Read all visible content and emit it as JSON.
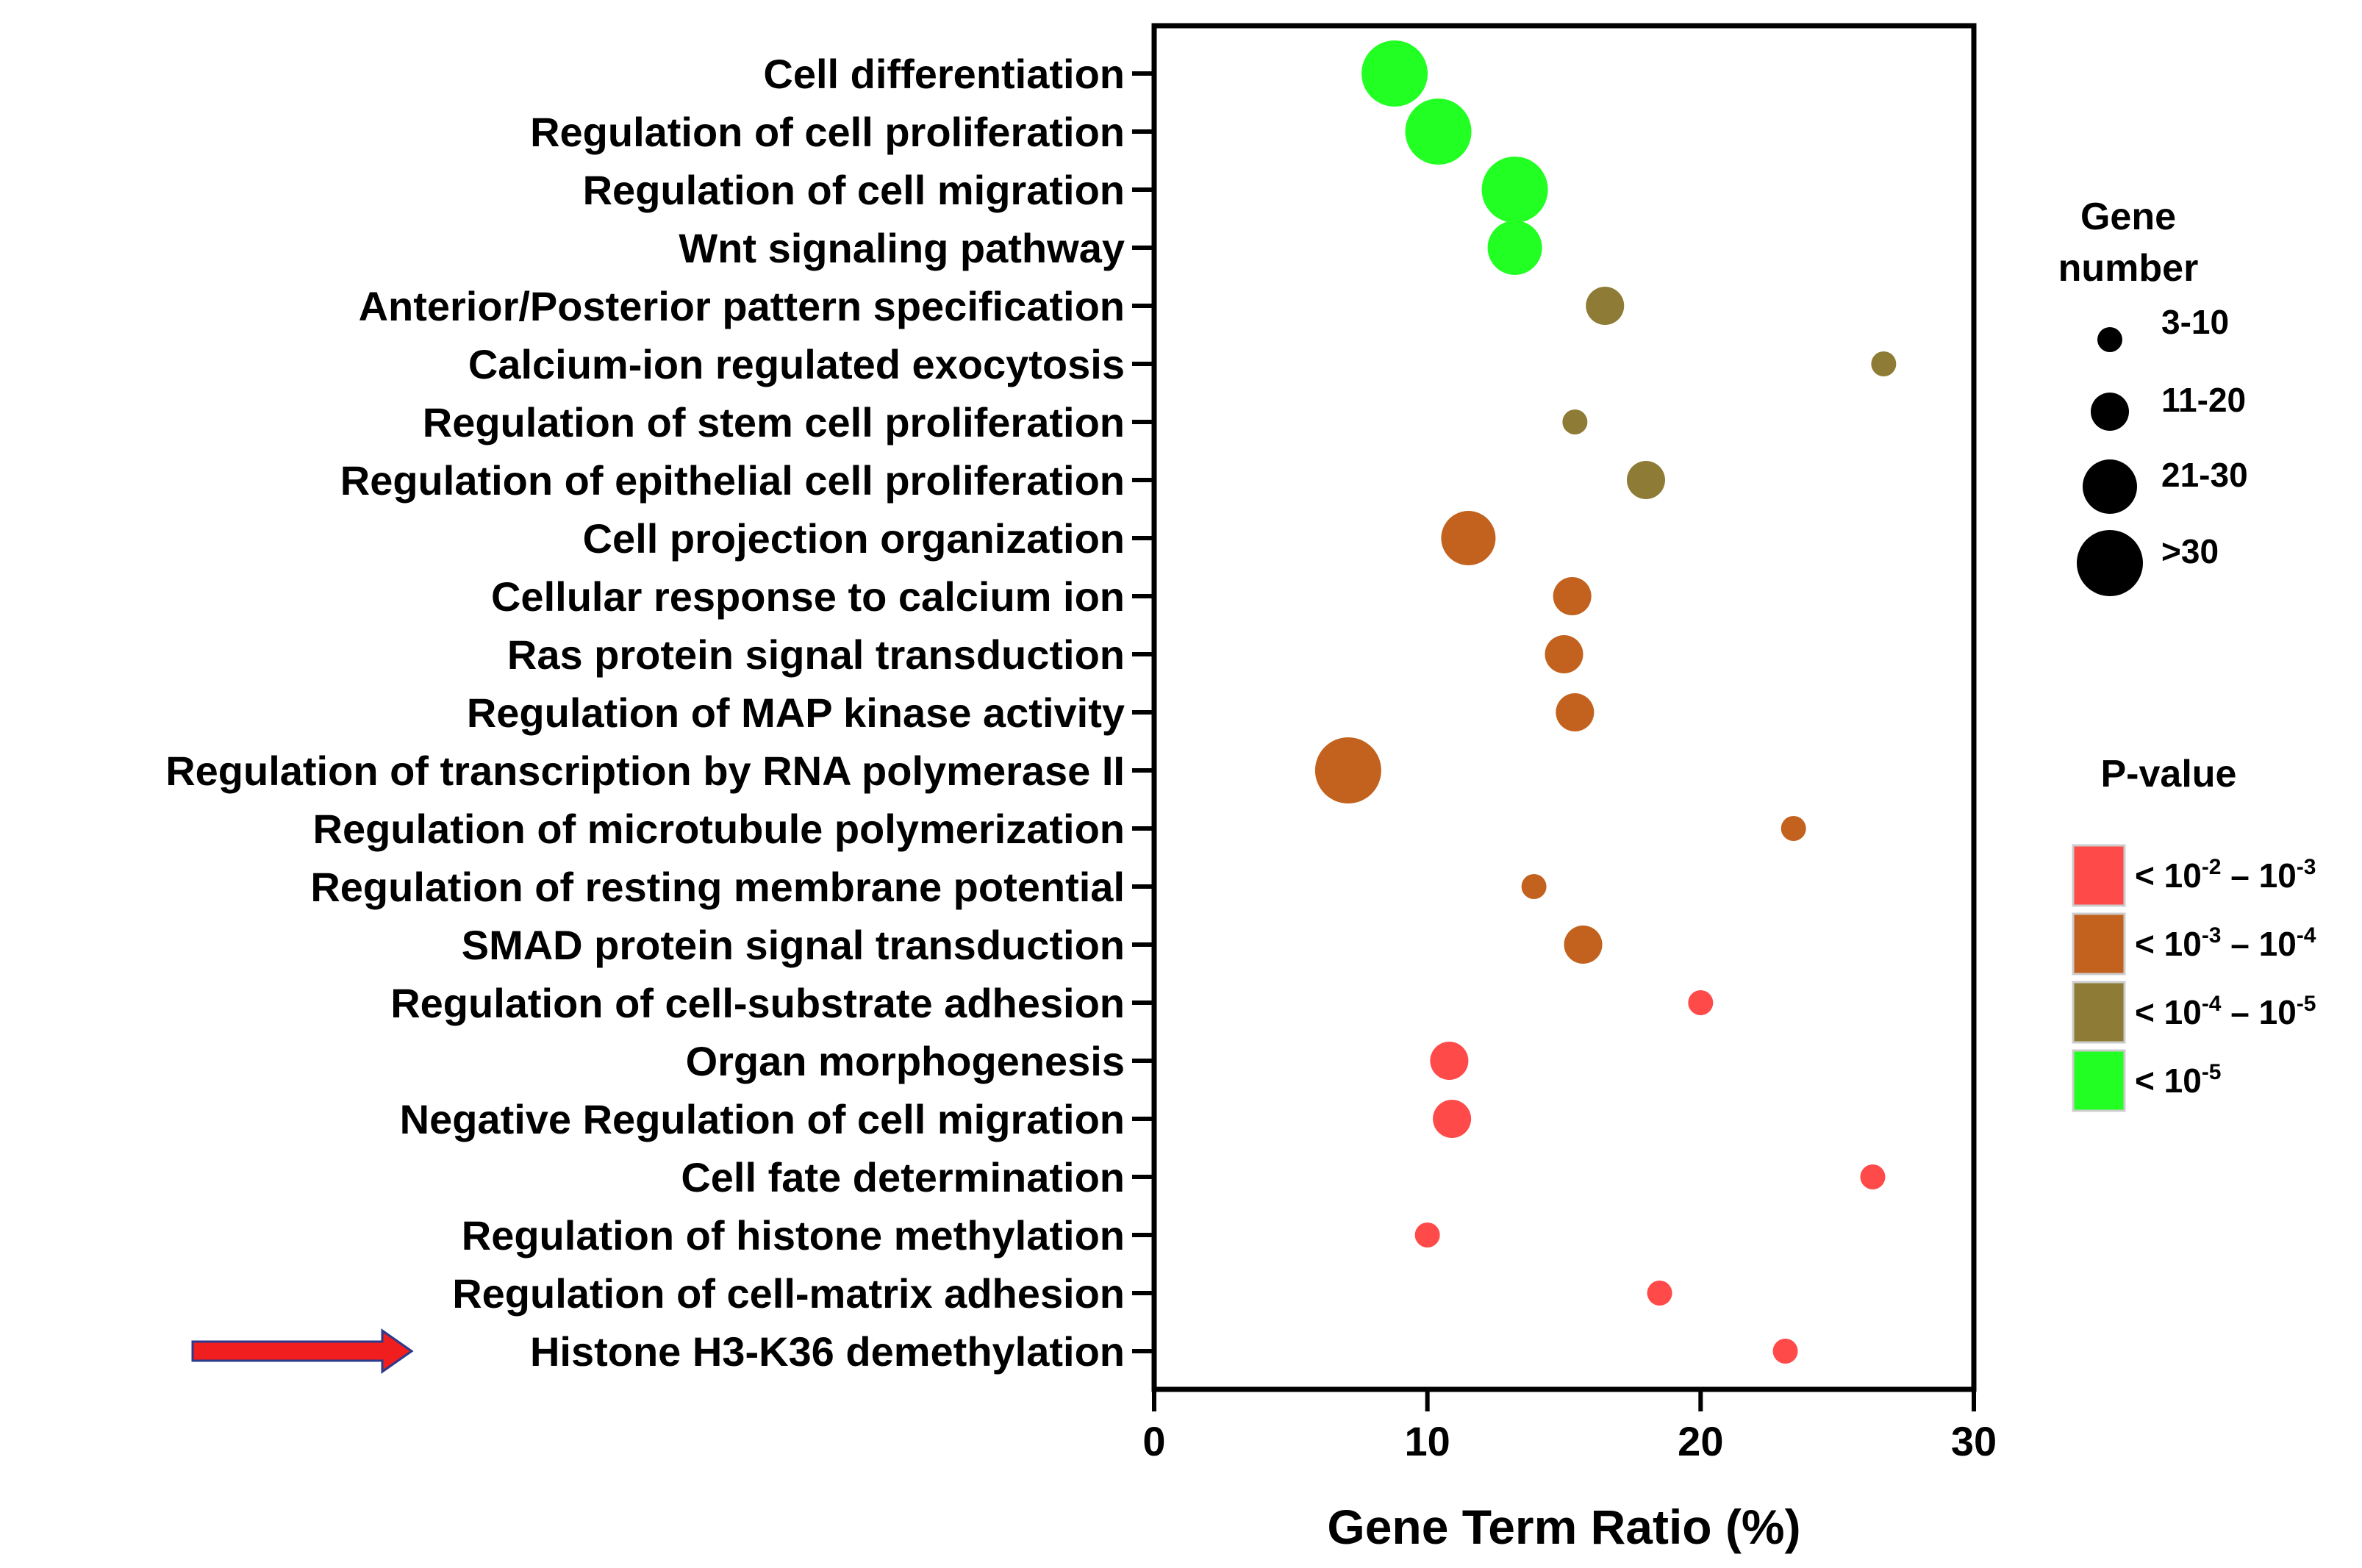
{
  "chart_data": {
    "type": "scatter",
    "subtype": "bubble",
    "xlabel": "Gene Term Ratio (%)",
    "ylabel": "",
    "xlim": [
      0,
      30
    ],
    "xticks": [
      "0",
      "10",
      "20",
      "30"
    ],
    "grid": false,
    "categories": [
      "Cell differentiation",
      "Regulation of cell proliferation",
      "Regulation of cell migration",
      "Wnt signaling pathway",
      "Anterior/Posterior pattern specification",
      "Calcium-ion regulated exocytosis",
      "Regulation of stem cell proliferation",
      "Regulation of epithelial cell proliferation",
      "Cell projection organization",
      "Cellular response to calcium ion",
      "Ras protein signal transduction",
      "Regulation of MAP kinase activity",
      "Regulation of transcription by RNA polymerase II",
      "Regulation of microtubule polymerization",
      "Regulation of resting membrane potential",
      "SMAD protein signal transduction",
      "Regulation of cell-substrate adhesion",
      "Organ morphogenesis",
      "Negative Regulation of cell migration",
      "Cell fate determination",
      "Regulation of histone methylation",
      "Regulation of cell-matrix adhesion",
      "Histone H3-K36 demethylation"
    ],
    "points": [
      {
        "term": "Cell differentiation",
        "ratio": 8.8,
        "size_class": 4,
        "pvalue_class": 4
      },
      {
        "term": "Regulation of cell proliferation",
        "ratio": 10.4,
        "size_class": 4,
        "pvalue_class": 4
      },
      {
        "term": "Regulation of cell migration",
        "ratio": 13.2,
        "size_class": 4,
        "pvalue_class": 4
      },
      {
        "term": "Wnt signaling pathway",
        "ratio": 13.2,
        "size_class": 3,
        "pvalue_class": 4
      },
      {
        "term": "Anterior/Posterior pattern specification",
        "ratio": 16.5,
        "size_class": 2,
        "pvalue_class": 3
      },
      {
        "term": "Calcium-ion regulated exocytosis",
        "ratio": 26.7,
        "size_class": 1,
        "pvalue_class": 3
      },
      {
        "term": "Regulation of stem cell proliferation",
        "ratio": 15.4,
        "size_class": 1,
        "pvalue_class": 3
      },
      {
        "term": "Regulation of epithelial cell proliferation",
        "ratio": 18.0,
        "size_class": 2,
        "pvalue_class": 3
      },
      {
        "term": "Cell projection organization",
        "ratio": 11.5,
        "size_class": 3,
        "pvalue_class": 2
      },
      {
        "term": "Cellular response to calcium ion",
        "ratio": 15.3,
        "size_class": 2,
        "pvalue_class": 2
      },
      {
        "term": "Ras protein signal transduction",
        "ratio": 15.0,
        "size_class": 2,
        "pvalue_class": 2
      },
      {
        "term": "Regulation of MAP kinase activity",
        "ratio": 15.4,
        "size_class": 2,
        "pvalue_class": 2
      },
      {
        "term": "Regulation of transcription by RNA polymerase II",
        "ratio": 7.1,
        "size_class": 4,
        "pvalue_class": 2
      },
      {
        "term": "Regulation of microtubule polymerization",
        "ratio": 23.4,
        "size_class": 1,
        "pvalue_class": 2
      },
      {
        "term": "Regulation of resting membrane potential",
        "ratio": 13.9,
        "size_class": 1,
        "pvalue_class": 2
      },
      {
        "term": "SMAD protein signal transduction",
        "ratio": 15.7,
        "size_class": 2,
        "pvalue_class": 2
      },
      {
        "term": "Regulation of cell-substrate adhesion",
        "ratio": 20.0,
        "size_class": 1,
        "pvalue_class": 1
      },
      {
        "term": "Organ morphogenesis",
        "ratio": 10.8,
        "size_class": 2,
        "pvalue_class": 1
      },
      {
        "term": "Negative Regulation of cell migration",
        "ratio": 10.9,
        "size_class": 2,
        "pvalue_class": 1
      },
      {
        "term": "Cell fate determination",
        "ratio": 26.3,
        "size_class": 1,
        "pvalue_class": 1
      },
      {
        "term": "Regulation of histone methylation",
        "ratio": 10.0,
        "size_class": 1,
        "pvalue_class": 1
      },
      {
        "term": "Regulation of cell-matrix adhesion",
        "ratio": 18.5,
        "size_class": 1,
        "pvalue_class": 1
      },
      {
        "term": "Histone H3-K36 demethylation",
        "ratio": 23.1,
        "size_class": 1,
        "pvalue_class": 1
      }
    ],
    "highlighted_term": "Histone H3-K36 demethylation",
    "size_legend": {
      "title_line1": "Gene",
      "title_line2": "number",
      "entries": [
        {
          "label": "3-10",
          "size_class": 1
        },
        {
          "label": "11-20",
          "size_class": 2
        },
        {
          "label": "21-30",
          "size_class": 3
        },
        {
          "label": ">30",
          "size_class": 4
        }
      ]
    },
    "color_legend": {
      "title": "P-value",
      "entries": [
        {
          "pvalue_class": 1,
          "color": "#FF4A4A",
          "label": "< 10-2 – 10-3",
          "parts": [
            "< 10",
            "-2",
            " – 10",
            "-3"
          ]
        },
        {
          "pvalue_class": 2,
          "color": "#C2621E",
          "label": "< 10-3 – 10-4",
          "parts": [
            "< 10",
            "-3",
            " – 10",
            "-4"
          ]
        },
        {
          "pvalue_class": 3,
          "color": "#8E7C36",
          "label": "< 10-4 – 10-5",
          "parts": [
            "< 10",
            "-4",
            " – 10",
            "-5"
          ]
        },
        {
          "pvalue_class": 4,
          "color": "#22FF22",
          "label": "< 10-5",
          "parts": [
            "< 10",
            "-5"
          ]
        }
      ]
    }
  },
  "colors": {
    "axis": "#000000",
    "arrow_fill": "#F01E1E",
    "arrow_stroke": "#2A3A8C"
  }
}
